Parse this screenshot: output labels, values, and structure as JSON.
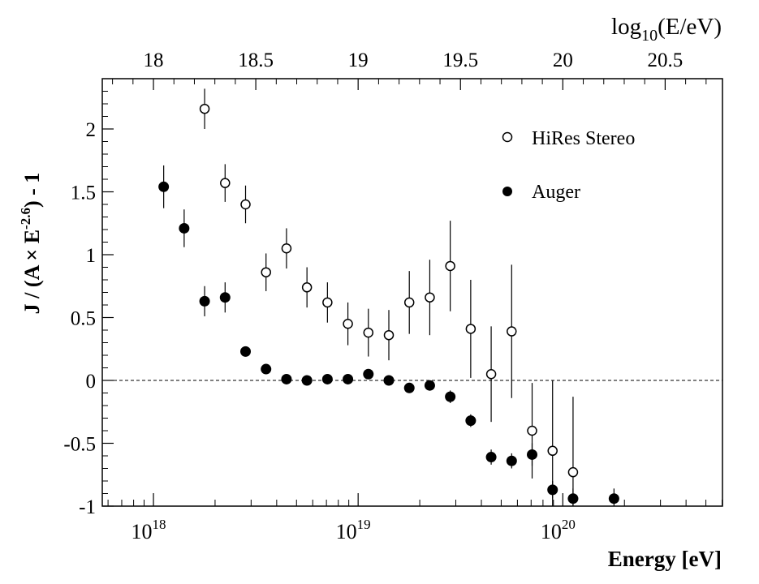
{
  "chart_data": {
    "type": "scatter",
    "xlabel": "Energy [eV]",
    "top_axis_label_main": "log",
    "top_axis_label_sub": "10",
    "top_axis_label_rest": "(E/eV)",
    "ylabel_main": "J / (A × E",
    "ylabel_sup": "-2.6",
    "ylabel_rest": ") - 1",
    "xlim_log10": [
      17.75,
      20.78
    ],
    "ylim": [
      -1,
      2.4
    ],
    "y_ticks": [
      {
        "value": -1,
        "label": "-1"
      },
      {
        "value": -0.5,
        "label": "-0.5"
      },
      {
        "value": 0,
        "label": "0"
      },
      {
        "value": 0.5,
        "label": "0.5"
      },
      {
        "value": 1,
        "label": "1"
      },
      {
        "value": 1.5,
        "label": "1.5"
      },
      {
        "value": 2,
        "label": "2"
      }
    ],
    "bottom_ticks": [
      {
        "value": 18,
        "base": "10",
        "exp": "18"
      },
      {
        "value": 19,
        "base": "10",
        "exp": "19"
      },
      {
        "value": 20,
        "base": "10",
        "exp": "20"
      }
    ],
    "top_ticks": [
      {
        "value": 18,
        "label": "18"
      },
      {
        "value": 18.5,
        "label": "18.5"
      },
      {
        "value": 19,
        "label": "19"
      },
      {
        "value": 19.5,
        "label": "19.5"
      },
      {
        "value": 20,
        "label": "20"
      },
      {
        "value": 20.5,
        "label": "20.5"
      }
    ],
    "reference_line_y": 0,
    "legend_position": "top-right",
    "series": [
      {
        "name": "HiRes Stereo",
        "marker": "open-circle",
        "points": [
          {
            "x": 18.25,
            "y": 2.16,
            "err": 0.16
          },
          {
            "x": 18.35,
            "y": 1.57,
            "err": 0.15
          },
          {
            "x": 18.45,
            "y": 1.4,
            "err": 0.15
          },
          {
            "x": 18.55,
            "y": 0.86,
            "err": 0.15
          },
          {
            "x": 18.65,
            "y": 1.05,
            "err": 0.16
          },
          {
            "x": 18.75,
            "y": 0.74,
            "err": 0.16
          },
          {
            "x": 18.85,
            "y": 0.62,
            "err": 0.16
          },
          {
            "x": 18.95,
            "y": 0.45,
            "err": 0.17
          },
          {
            "x": 19.05,
            "y": 0.38,
            "err": 0.19
          },
          {
            "x": 19.15,
            "y": 0.36,
            "err": 0.2
          },
          {
            "x": 19.25,
            "y": 0.62,
            "err": 0.25
          },
          {
            "x": 19.35,
            "y": 0.66,
            "err": 0.3
          },
          {
            "x": 19.45,
            "y": 0.91,
            "err": 0.36
          },
          {
            "x": 19.55,
            "y": 0.41,
            "err": 0.39
          },
          {
            "x": 19.65,
            "y": 0.05,
            "err": 0.38
          },
          {
            "x": 19.75,
            "y": 0.39,
            "err": 0.53
          },
          {
            "x": 19.85,
            "y": -0.4,
            "err": 0.38
          },
          {
            "x": 19.95,
            "y": -0.56,
            "err": 0.56
          },
          {
            "x": 20.05,
            "y": -0.73,
            "err": 0.6
          }
        ]
      },
      {
        "name": "Auger",
        "marker": "filled-circle",
        "points": [
          {
            "x": 18.05,
            "y": 1.54,
            "err": 0.17
          },
          {
            "x": 18.15,
            "y": 1.21,
            "err": 0.15
          },
          {
            "x": 18.25,
            "y": 0.63,
            "err": 0.12
          },
          {
            "x": 18.35,
            "y": 0.66,
            "err": 0.12
          },
          {
            "x": 18.45,
            "y": 0.23,
            "err": 0.04
          },
          {
            "x": 18.55,
            "y": 0.09,
            "err": 0.03
          },
          {
            "x": 18.65,
            "y": 0.01,
            "err": 0.03
          },
          {
            "x": 18.75,
            "y": 0.0,
            "err": 0.03
          },
          {
            "x": 18.85,
            "y": 0.01,
            "err": 0.03
          },
          {
            "x": 18.95,
            "y": 0.01,
            "err": 0.03
          },
          {
            "x": 19.05,
            "y": 0.05,
            "err": 0.04
          },
          {
            "x": 19.15,
            "y": 0.0,
            "err": 0.04
          },
          {
            "x": 19.25,
            "y": -0.06,
            "err": 0.04
          },
          {
            "x": 19.35,
            "y": -0.04,
            "err": 0.04
          },
          {
            "x": 19.45,
            "y": -0.13,
            "err": 0.05
          },
          {
            "x": 19.55,
            "y": -0.32,
            "err": 0.05
          },
          {
            "x": 19.65,
            "y": -0.61,
            "err": 0.06
          },
          {
            "x": 19.75,
            "y": -0.64,
            "err": 0.06
          },
          {
            "x": 19.85,
            "y": -0.59,
            "err": 0.09
          },
          {
            "x": 19.95,
            "y": -0.87,
            "err": 0.07
          },
          {
            "x": 20.05,
            "y": -0.94,
            "err": 0.08
          },
          {
            "x": 20.25,
            "y": -0.94,
            "err": 0.08
          }
        ]
      }
    ]
  }
}
